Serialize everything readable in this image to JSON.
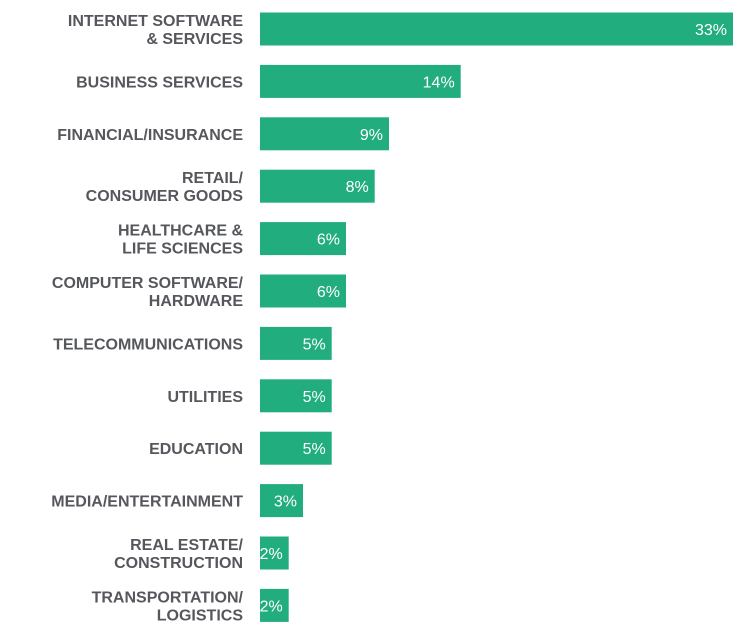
{
  "chart_data": {
    "type": "bar",
    "orientation": "horizontal",
    "categories": [
      "INTERNET SOFTWARE\n& SERVICES",
      "BUSINESS SERVICES",
      "FINANCIAL/INSURANCE",
      "RETAIL/\nCONSUMER GOODS",
      "HEALTHCARE &\nLIFE SCIENCES",
      "COMPUTER SOFTWARE/\nHARDWARE",
      "TELECOMMUNICATIONS",
      "UTILITIES",
      "EDUCATION",
      "MEDIA/ENTERTAINMENT",
      "REAL ESTATE/\nCONSTRUCTION",
      "TRANSPORTATION/\nLOGISTICS"
    ],
    "values": [
      33,
      14,
      9,
      8,
      6,
      6,
      5,
      5,
      5,
      3,
      2,
      2
    ],
    "value_labels": [
      "33%",
      "14%",
      "9%",
      "8%",
      "6%",
      "6%",
      "5%",
      "5%",
      "5%",
      "3%",
      "2%",
      "2%"
    ],
    "unit": "%",
    "xlim": [
      0,
      33
    ],
    "bar_color": "#22ad7f",
    "label_color": "#55575c",
    "value_label_color": "#ffffff",
    "grid": false,
    "legend": "none",
    "title": "",
    "xlabel": "",
    "ylabel": ""
  }
}
